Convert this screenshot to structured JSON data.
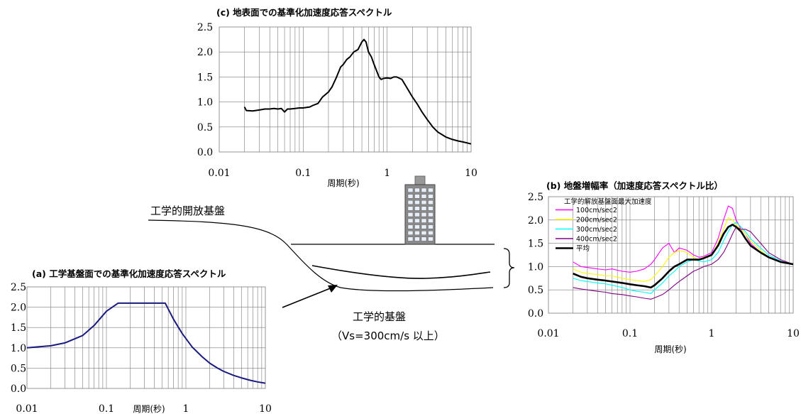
{
  "chart_data": [
    {
      "id": "c",
      "type": "line",
      "title": "(c) 地表面での基準化加速度応答スペクトル",
      "xlabel": "周期(秒)",
      "ylabel": "",
      "xscale": "log",
      "xlim": [
        0.01,
        10
      ],
      "ylim": [
        0,
        2.5
      ],
      "xticks": [
        "0.01",
        "0.1",
        "1",
        "10"
      ],
      "yticks": [
        "0.0",
        "0.5",
        "1.0",
        "1.5",
        "2.0",
        "2.5"
      ],
      "grid": true,
      "series": [
        {
          "color": "#000000",
          "x": [
            0.02,
            0.021,
            0.025,
            0.03,
            0.035,
            0.04,
            0.045,
            0.05,
            0.055,
            0.06,
            0.065,
            0.07,
            0.08,
            0.09,
            0.1,
            0.11,
            0.12,
            0.13,
            0.15,
            0.17,
            0.2,
            0.22,
            0.25,
            0.28,
            0.3,
            0.33,
            0.36,
            0.4,
            0.45,
            0.5,
            0.53,
            0.56,
            0.6,
            0.65,
            0.7,
            0.8,
            0.85,
            0.9,
            1.0,
            1.1,
            1.2,
            1.3,
            1.5,
            1.7,
            2.0,
            2.3,
            2.6,
            3.0,
            3.5,
            4.0,
            5.0,
            6.0,
            7.0,
            8.0,
            9.0,
            10.0
          ],
          "y": [
            0.9,
            0.83,
            0.82,
            0.84,
            0.86,
            0.86,
            0.87,
            0.86,
            0.87,
            0.8,
            0.86,
            0.86,
            0.87,
            0.88,
            0.88,
            0.89,
            0.9,
            0.93,
            0.97,
            1.1,
            1.2,
            1.3,
            1.5,
            1.7,
            1.75,
            1.85,
            1.9,
            2.0,
            2.05,
            2.2,
            2.25,
            2.2,
            2.0,
            1.9,
            1.75,
            1.5,
            1.45,
            1.47,
            1.48,
            1.47,
            1.5,
            1.5,
            1.45,
            1.3,
            1.1,
            0.95,
            0.8,
            0.65,
            0.5,
            0.4,
            0.3,
            0.25,
            0.22,
            0.2,
            0.18,
            0.16
          ]
        }
      ]
    },
    {
      "id": "a",
      "type": "line",
      "title": "(a) 工学基盤面での基準化加速度応答スペクトル",
      "xlabel": "周期(秒)",
      "ylabel": "",
      "xscale": "log",
      "xlim": [
        0.01,
        10
      ],
      "ylim": [
        0,
        2.5
      ],
      "xticks": [
        "0.01",
        "0.1",
        "1",
        "10"
      ],
      "yticks": [
        "0.0",
        "0.5",
        "1.0",
        "1.5",
        "2.0",
        "2.5"
      ],
      "grid": true,
      "series": [
        {
          "color": "#1a1a80",
          "x": [
            0.01,
            0.02,
            0.03,
            0.05,
            0.07,
            0.1,
            0.14,
            0.2,
            0.3,
            0.4,
            0.55,
            0.7,
            0.9,
            1.2,
            1.6,
            2.0,
            2.5,
            3.0,
            4.0,
            5.0,
            6.5,
            8.0,
            10.0
          ],
          "y": [
            1.0,
            1.05,
            1.12,
            1.3,
            1.55,
            1.9,
            2.1,
            2.1,
            2.1,
            2.1,
            2.1,
            1.7,
            1.35,
            1.02,
            0.78,
            0.62,
            0.5,
            0.42,
            0.32,
            0.26,
            0.2,
            0.16,
            0.13
          ]
        }
      ]
    },
    {
      "id": "b",
      "type": "line",
      "title": "(b) 地盤増幅率（加速度応答スペクトル比）",
      "xlabel": "周期(秒)",
      "ylabel": "",
      "xscale": "log",
      "xlim": [
        0.01,
        10
      ],
      "ylim": [
        0,
        2.5
      ],
      "xticks": [
        "0.01",
        "0.1",
        "1",
        "10"
      ],
      "yticks": [
        "0.0",
        "0.5",
        "1.0",
        "1.5",
        "2.0",
        "2.5"
      ],
      "grid": true,
      "legend_title": "工学的解放基盤面最大加速度",
      "legend_position": "top-left",
      "series": [
        {
          "name": "100cm/sec2",
          "color": "#ff00ff",
          "x": [
            0.02,
            0.025,
            0.03,
            0.04,
            0.05,
            0.06,
            0.08,
            0.1,
            0.12,
            0.15,
            0.18,
            0.2,
            0.25,
            0.3,
            0.35,
            0.4,
            0.5,
            0.6,
            0.7,
            0.8,
            1.0,
            1.2,
            1.4,
            1.6,
            1.8,
            2.0,
            2.3,
            2.6,
            3.0,
            4.0,
            5.0,
            7.0,
            10.0
          ],
          "y": [
            1.1,
            1.0,
            0.98,
            0.95,
            0.93,
            0.95,
            0.9,
            0.88,
            0.9,
            0.95,
            1.05,
            1.15,
            1.4,
            1.5,
            1.3,
            1.4,
            1.35,
            1.25,
            1.2,
            1.22,
            1.3,
            1.6,
            2.0,
            2.3,
            2.25,
            2.0,
            1.8,
            1.7,
            1.5,
            1.3,
            1.2,
            1.1,
            1.05
          ]
        },
        {
          "name": "200cm/sec2",
          "color": "#ffff00",
          "x": [
            0.02,
            0.025,
            0.03,
            0.04,
            0.05,
            0.06,
            0.08,
            0.1,
            0.12,
            0.15,
            0.18,
            0.2,
            0.25,
            0.3,
            0.35,
            0.4,
            0.5,
            0.6,
            0.7,
            0.8,
            1.0,
            1.2,
            1.4,
            1.6,
            1.8,
            2.0,
            2.3,
            2.6,
            3.0,
            4.0,
            5.0,
            7.0,
            10.0
          ],
          "y": [
            0.95,
            0.88,
            0.85,
            0.83,
            0.8,
            0.8,
            0.75,
            0.72,
            0.7,
            0.68,
            0.72,
            0.8,
            1.0,
            1.2,
            1.3,
            1.35,
            1.3,
            1.2,
            1.15,
            1.2,
            1.25,
            1.5,
            1.8,
            2.05,
            2.0,
            1.9,
            1.8,
            1.7,
            1.55,
            1.35,
            1.2,
            1.1,
            1.05
          ]
        },
        {
          "name": "300cm/sec2",
          "color": "#00ffff",
          "x": [
            0.02,
            0.025,
            0.03,
            0.04,
            0.05,
            0.06,
            0.08,
            0.1,
            0.12,
            0.15,
            0.18,
            0.2,
            0.25,
            0.3,
            0.35,
            0.4,
            0.5,
            0.6,
            0.7,
            0.8,
            1.0,
            1.2,
            1.4,
            1.6,
            1.8,
            2.0,
            2.3,
            2.6,
            3.0,
            4.0,
            5.0,
            7.0,
            10.0
          ],
          "y": [
            0.75,
            0.7,
            0.68,
            0.65,
            0.63,
            0.6,
            0.55,
            0.5,
            0.47,
            0.45,
            0.42,
            0.5,
            0.65,
            0.8,
            0.9,
            1.0,
            1.1,
            1.15,
            1.12,
            1.1,
            1.15,
            1.3,
            1.55,
            1.75,
            1.9,
            1.95,
            1.85,
            1.75,
            1.6,
            1.4,
            1.25,
            1.12,
            1.05
          ]
        },
        {
          "name": "400cm/sec2",
          "color": "#800080",
          "x": [
            0.02,
            0.025,
            0.03,
            0.04,
            0.05,
            0.06,
            0.08,
            0.1,
            0.12,
            0.15,
            0.18,
            0.2,
            0.25,
            0.3,
            0.35,
            0.4,
            0.5,
            0.6,
            0.7,
            0.8,
            1.0,
            1.2,
            1.4,
            1.6,
            1.8,
            2.0,
            2.3,
            2.6,
            3.0,
            4.0,
            5.0,
            7.0,
            10.0
          ],
          "y": [
            0.55,
            0.52,
            0.5,
            0.47,
            0.45,
            0.42,
            0.4,
            0.37,
            0.35,
            0.32,
            0.3,
            0.33,
            0.4,
            0.5,
            0.6,
            0.68,
            0.8,
            0.9,
            0.95,
            1.0,
            1.05,
            1.15,
            1.3,
            1.5,
            1.7,
            1.85,
            1.8,
            1.8,
            1.75,
            1.5,
            1.3,
            1.15,
            1.05
          ]
        },
        {
          "name": "平均",
          "color": "#000000",
          "bold": true,
          "x": [
            0.02,
            0.025,
            0.03,
            0.04,
            0.05,
            0.06,
            0.08,
            0.1,
            0.12,
            0.15,
            0.18,
            0.2,
            0.25,
            0.3,
            0.35,
            0.4,
            0.5,
            0.6,
            0.7,
            0.8,
            1.0,
            1.2,
            1.4,
            1.6,
            1.8,
            2.0,
            2.3,
            2.6,
            3.0,
            4.0,
            5.0,
            7.0,
            10.0
          ],
          "y": [
            0.85,
            0.78,
            0.75,
            0.72,
            0.7,
            0.68,
            0.65,
            0.62,
            0.6,
            0.58,
            0.55,
            0.6,
            0.75,
            0.9,
            1.0,
            1.05,
            1.15,
            1.15,
            1.15,
            1.18,
            1.25,
            1.45,
            1.7,
            1.85,
            1.9,
            1.85,
            1.75,
            1.6,
            1.45,
            1.3,
            1.2,
            1.1,
            1.05
          ]
        }
      ]
    }
  ],
  "diagram": {
    "labels": {
      "open_base": "工学的開放基盤",
      "base": "工学的基盤",
      "vs": "（Vs=300cm/s 以上）"
    }
  }
}
